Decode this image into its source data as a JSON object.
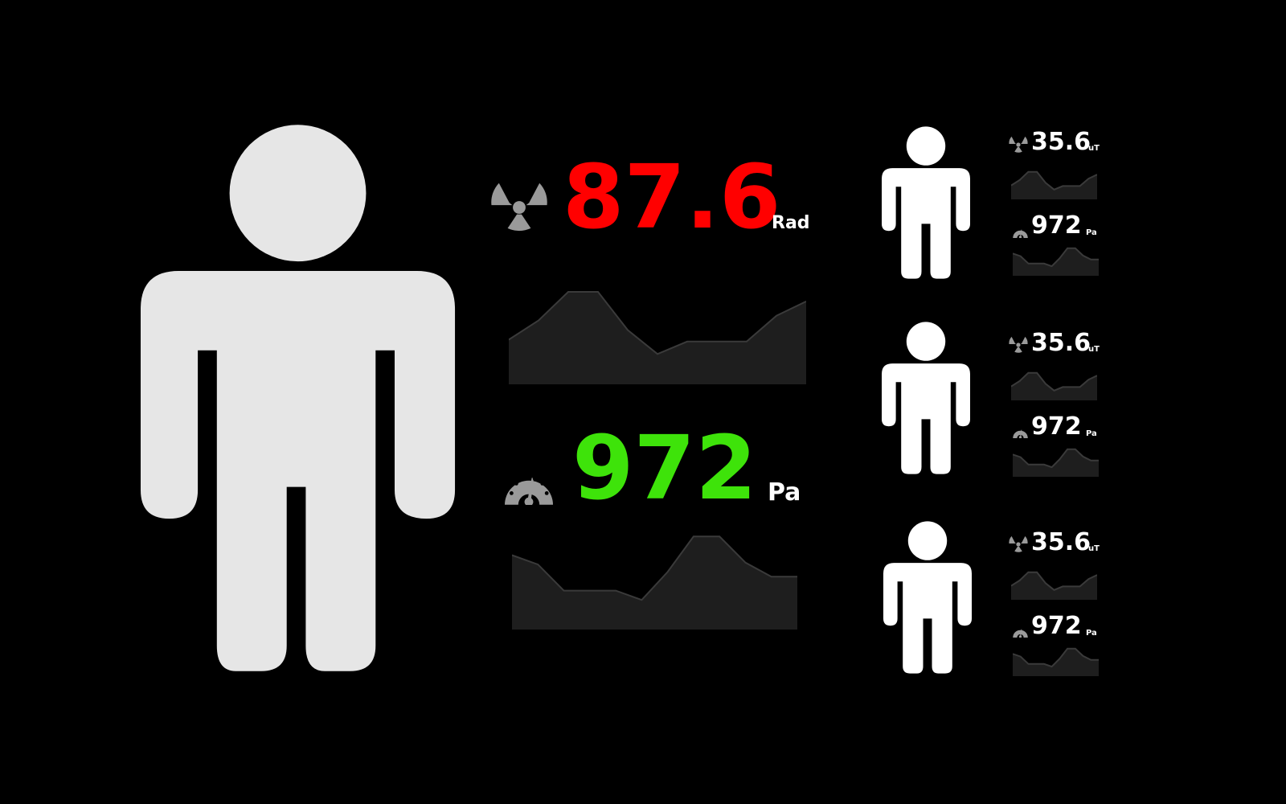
{
  "colors": {
    "background": "#000000",
    "primary_person": "#e6e6e6",
    "secondary_person": "#ffffff",
    "radiation_value": "#ff0000",
    "pressure_value": "#3ee30a",
    "icon_gray": "#9a9a9a",
    "sparkline_fill": "#1e1e1e",
    "sparkline_line": "#3a3a3a"
  },
  "primary": {
    "radiation": {
      "icon": "radiation-icon",
      "value": "87.6",
      "unit": "Rad",
      "trend": [
        0.45,
        0.65,
        0.95,
        0.95,
        0.55,
        0.3,
        0.43,
        0.43,
        0.43,
        0.7,
        0.85
      ]
    },
    "pressure": {
      "icon": "gauge-icon",
      "value": "972",
      "unit": "Pa",
      "trend": [
        0.78,
        0.68,
        0.4,
        0.4,
        0.4,
        0.3,
        0.6,
        0.98,
        0.98,
        0.7,
        0.55,
        0.55
      ]
    }
  },
  "secondary": [
    {
      "radiation": {
        "icon": "radiation-icon",
        "value": "35.6",
        "unit": "uT"
      },
      "pressure": {
        "icon": "gauge-icon",
        "value": "972",
        "unit": "Pa"
      }
    },
    {
      "radiation": {
        "icon": "radiation-icon",
        "value": "35.6",
        "unit": "uT"
      },
      "pressure": {
        "icon": "gauge-icon",
        "value": "972",
        "unit": "Pa"
      }
    },
    {
      "radiation": {
        "icon": "radiation-icon",
        "value": "35.6",
        "unit": "uT"
      },
      "pressure": {
        "icon": "gauge-icon",
        "value": "972",
        "unit": "Pa"
      }
    }
  ]
}
